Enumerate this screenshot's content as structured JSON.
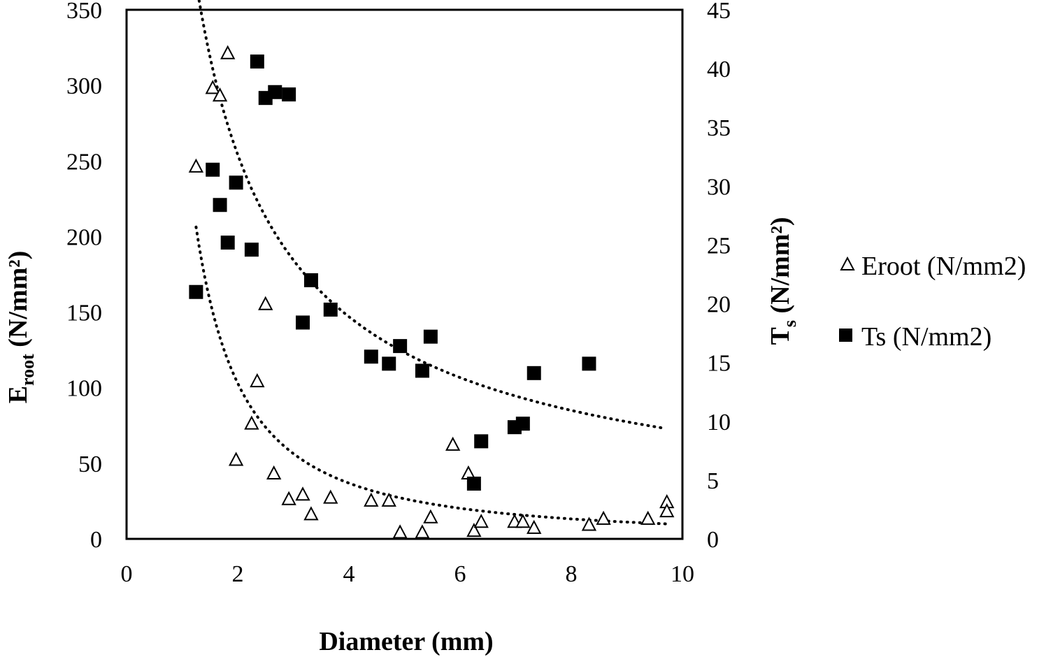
{
  "chart_data": {
    "type": "scatter",
    "xlabel": "Diameter (mm)",
    "ylabel_left": {
      "main": "E",
      "sub": "root",
      "rest": " (N/mm²)"
    },
    "ylabel_right": {
      "main": "T",
      "sub": "s",
      "rest": " (N/mm²)"
    },
    "xlim": [
      0,
      10
    ],
    "ylim_left": [
      0,
      350
    ],
    "ylim_right": [
      0,
      45
    ],
    "x_ticks": [
      "0",
      "2",
      "4",
      "6",
      "8",
      "10"
    ],
    "y_left_ticks": [
      "0",
      "50",
      "100",
      "150",
      "200",
      "250",
      "300",
      "350"
    ],
    "y_right_ticks": [
      "0",
      "5",
      "10",
      "15",
      "20",
      "25",
      "30",
      "35",
      "40",
      "45"
    ],
    "grid": false,
    "legend_position": "right",
    "series": [
      {
        "name": "Eroot (N/mm2)",
        "marker": "open-triangle",
        "axis": "left",
        "trendline": {
          "type": "power",
          "a": 287,
          "b": -1.48,
          "x_range": [
            1.25,
            9.7
          ]
        },
        "points": [
          [
            1.25,
            246
          ],
          [
            1.55,
            298
          ],
          [
            1.68,
            293
          ],
          [
            1.82,
            321
          ],
          [
            1.97,
            52
          ],
          [
            2.25,
            76
          ],
          [
            2.35,
            104
          ],
          [
            2.5,
            155
          ],
          [
            2.65,
            43
          ],
          [
            2.92,
            26
          ],
          [
            3.17,
            29
          ],
          [
            3.32,
            16
          ],
          [
            3.67,
            27
          ],
          [
            4.4,
            25
          ],
          [
            4.72,
            25
          ],
          [
            4.92,
            4
          ],
          [
            5.32,
            4
          ],
          [
            5.47,
            14
          ],
          [
            5.87,
            62
          ],
          [
            6.15,
            43
          ],
          [
            6.25,
            5
          ],
          [
            6.38,
            11
          ],
          [
            6.98,
            11
          ],
          [
            7.13,
            11
          ],
          [
            7.33,
            7
          ],
          [
            8.32,
            9
          ],
          [
            8.58,
            13
          ],
          [
            9.38,
            13
          ],
          [
            9.72,
            24
          ],
          [
            9.72,
            18
          ]
        ]
      },
      {
        "name": "Ts (N/mm2)",
        "marker": "filled-square",
        "axis": "right",
        "trendline": {
          "type": "power",
          "a": 56.5,
          "b": -0.79,
          "x_range": [
            1.25,
            9.7
          ]
        },
        "points": [
          [
            1.25,
            21
          ],
          [
            1.55,
            31.4
          ],
          [
            1.68,
            28.4
          ],
          [
            1.82,
            25.2
          ],
          [
            1.97,
            30.3
          ],
          [
            2.25,
            24.6
          ],
          [
            2.35,
            40.6
          ],
          [
            2.5,
            37.5
          ],
          [
            2.67,
            38
          ],
          [
            2.92,
            37.8
          ],
          [
            3.17,
            18.4
          ],
          [
            3.32,
            22
          ],
          [
            3.67,
            19.5
          ],
          [
            4.4,
            15.5
          ],
          [
            4.72,
            14.9
          ],
          [
            4.92,
            16.4
          ],
          [
            5.32,
            14.3
          ],
          [
            5.47,
            17.2
          ],
          [
            6.25,
            4.7
          ],
          [
            6.38,
            8.3
          ],
          [
            6.98,
            9.5
          ],
          [
            7.13,
            9.8
          ],
          [
            7.33,
            14.1
          ],
          [
            8.32,
            14.9
          ]
        ]
      }
    ]
  }
}
